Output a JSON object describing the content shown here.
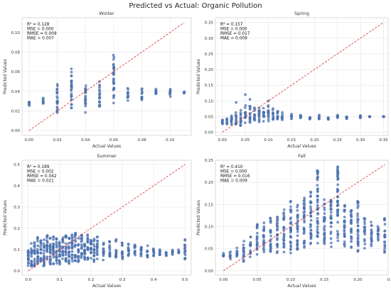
{
  "suptitle": "Predicted vs Actual: Organic Pollution",
  "colors": {
    "point": "#4c72b0",
    "diagonal": "#d62728",
    "grid": "#e6e6e6",
    "frame": "#cccccc",
    "text": "#333333"
  },
  "chart_data": [
    {
      "type": "scatter",
      "title": "Winter",
      "xlabel": "Actual Values",
      "ylabel": "Predicted Values",
      "xlim": [
        -0.005,
        0.115
      ],
      "ylim": [
        -0.005,
        0.115
      ],
      "xticks": [
        "0.00",
        "0.02",
        "0.04",
        "0.06",
        "0.08",
        "0.10"
      ],
      "xtick_values": [
        0,
        0.02,
        0.04,
        0.06,
        0.08,
        0.1
      ],
      "yticks": [
        "0.00",
        "0.02",
        "0.04",
        "0.06",
        "0.08",
        "0.10"
      ],
      "ytick_values": [
        0,
        0.02,
        0.04,
        0.06,
        0.08,
        0.1
      ],
      "grid": true,
      "diagonal": [
        0,
        0.11
      ],
      "metrics": [
        "R² = 0.128",
        "MSE = 0.000",
        "RMSE = 0.009",
        "MAE = 0.007"
      ],
      "columns": [
        {
          "x": 0.0,
          "y_min": 0.024,
          "y_max": 0.031
        },
        {
          "x": 0.01,
          "y_min": 0.026,
          "y_max": 0.034
        },
        {
          "x": 0.02,
          "y_min": 0.013,
          "y_max": 0.048
        },
        {
          "x": 0.03,
          "y_min": 0.022,
          "y_max": 0.063
        },
        {
          "x": 0.04,
          "y_min": 0.018,
          "y_max": 0.052
        },
        {
          "x": 0.05,
          "y_min": 0.021,
          "y_max": 0.052
        },
        {
          "x": 0.06,
          "y_min": 0.025,
          "y_max": 0.078
        },
        {
          "x": 0.07,
          "y_min": 0.03,
          "y_max": 0.046
        },
        {
          "x": 0.08,
          "y_min": 0.03,
          "y_max": 0.045
        },
        {
          "x": 0.09,
          "y_min": 0.034,
          "y_max": 0.044
        },
        {
          "x": 0.1,
          "y_min": 0.034,
          "y_max": 0.044
        },
        {
          "x": 0.11,
          "y_min": 0.038,
          "y_max": 0.04
        }
      ]
    },
    {
      "type": "scatter",
      "title": "Spring",
      "xlabel": "Actual Values",
      "ylabel": "Predicted Values",
      "xlim": [
        -0.015,
        0.36
      ],
      "ylim": [
        -0.01,
        0.365
      ],
      "xticks": [
        "0.00",
        "0.05",
        "0.10",
        "0.15",
        "0.20",
        "0.25",
        "0.30",
        "0.35"
      ],
      "xtick_values": [
        0,
        0.05,
        0.1,
        0.15,
        0.2,
        0.25,
        0.3,
        0.35
      ],
      "yticks": [
        "0.00",
        "0.05",
        "0.10",
        "0.15",
        "0.20",
        "0.25",
        "0.30",
        "0.35"
      ],
      "ytick_values": [
        0,
        0.05,
        0.1,
        0.15,
        0.2,
        0.25,
        0.3,
        0.35
      ],
      "grid": true,
      "diagonal": [
        0,
        0.35
      ],
      "metrics": [
        "R² = 0.157",
        "MSE = 0.000",
        "RMSE = 0.017",
        "MAE = 0.009"
      ],
      "columns": [
        {
          "x": 0.0,
          "y_min": 0.025,
          "y_max": 0.04
        },
        {
          "x": 0.01,
          "y_min": 0.025,
          "y_max": 0.045
        },
        {
          "x": 0.02,
          "y_min": 0.02,
          "y_max": 0.055
        },
        {
          "x": 0.03,
          "y_min": 0.02,
          "y_max": 0.07
        },
        {
          "x": 0.04,
          "y_min": 0.02,
          "y_max": 0.08
        },
        {
          "x": 0.05,
          "y_min": 0.025,
          "y_max": 0.09
        },
        {
          "x": 0.06,
          "y_min": 0.02,
          "y_max": 0.085
        },
        {
          "x": 0.07,
          "y_min": 0.03,
          "y_max": 0.08
        },
        {
          "x": 0.08,
          "y_min": 0.025,
          "y_max": 0.08
        },
        {
          "x": 0.09,
          "y_min": 0.03,
          "y_max": 0.085
        },
        {
          "x": 0.1,
          "y_min": 0.03,
          "y_max": 0.09
        },
        {
          "x": 0.11,
          "y_min": 0.035,
          "y_max": 0.08
        },
        {
          "x": 0.12,
          "y_min": 0.035,
          "y_max": 0.07
        },
        {
          "x": 0.13,
          "y_min": 0.035,
          "y_max": 0.065
        },
        {
          "x": 0.15,
          "y_min": 0.04,
          "y_max": 0.06
        },
        {
          "x": 0.17,
          "y_min": 0.04,
          "y_max": 0.055
        },
        {
          "x": 0.19,
          "y_min": 0.04,
          "y_max": 0.05
        },
        {
          "x": 0.21,
          "y_min": 0.04,
          "y_max": 0.055
        },
        {
          "x": 0.23,
          "y_min": 0.04,
          "y_max": 0.05
        },
        {
          "x": 0.25,
          "y_min": 0.045,
          "y_max": 0.055
        },
        {
          "x": 0.27,
          "y_min": 0.04,
          "y_max": 0.05
        },
        {
          "x": 0.3,
          "y_min": 0.045,
          "y_max": 0.055
        },
        {
          "x": 0.32,
          "y_min": 0.05,
          "y_max": 0.05
        },
        {
          "x": 0.35,
          "y_min": 0.05,
          "y_max": 0.05
        }
      ],
      "outliers": [
        [
          0.06,
          0.105
        ],
        [
          0.1,
          0.1
        ],
        [
          0.03,
          0.095
        ],
        [
          0.05,
          0.12
        ]
      ]
    },
    {
      "type": "scatter",
      "title": "Summer",
      "xlabel": "Actual Values",
      "ylabel": "Predicted Values",
      "xlim": [
        -0.02,
        0.52
      ],
      "ylim": [
        -0.02,
        0.52
      ],
      "xticks": [
        "0.0",
        "0.1",
        "0.2",
        "0.3",
        "0.4",
        "0.5"
      ],
      "xtick_values": [
        0,
        0.1,
        0.2,
        0.3,
        0.4,
        0.5
      ],
      "yticks": [
        "0.0",
        "0.1",
        "0.2",
        "0.3",
        "0.4",
        "0.5"
      ],
      "ytick_values": [
        0,
        0.1,
        0.2,
        0.3,
        0.4,
        0.5
      ],
      "grid": true,
      "diagonal": [
        0,
        0.5
      ],
      "metrics": [
        "R² = 0.189",
        "MSE = 0.002",
        "RMSE = 0.042",
        "MAE = 0.021"
      ],
      "columns": [
        {
          "x": 0.0,
          "y_min": 0.02,
          "y_max": 0.14
        },
        {
          "x": 0.01,
          "y_min": 0.02,
          "y_max": 0.14
        },
        {
          "x": 0.02,
          "y_min": 0.02,
          "y_max": 0.15
        },
        {
          "x": 0.03,
          "y_min": 0.02,
          "y_max": 0.16
        },
        {
          "x": 0.04,
          "y_min": 0.02,
          "y_max": 0.15
        },
        {
          "x": 0.05,
          "y_min": 0.02,
          "y_max": 0.16
        },
        {
          "x": 0.06,
          "y_min": 0.03,
          "y_max": 0.17
        },
        {
          "x": 0.07,
          "y_min": 0.02,
          "y_max": 0.16
        },
        {
          "x": 0.08,
          "y_min": 0.03,
          "y_max": 0.17
        },
        {
          "x": 0.09,
          "y_min": 0.03,
          "y_max": 0.16
        },
        {
          "x": 0.1,
          "y_min": 0.03,
          "y_max": 0.17
        },
        {
          "x": 0.11,
          "y_min": 0.03,
          "y_max": 0.16
        },
        {
          "x": 0.12,
          "y_min": 0.03,
          "y_max": 0.17
        },
        {
          "x": 0.13,
          "y_min": 0.03,
          "y_max": 0.16
        },
        {
          "x": 0.14,
          "y_min": 0.03,
          "y_max": 0.18
        },
        {
          "x": 0.15,
          "y_min": 0.04,
          "y_max": 0.19
        },
        {
          "x": 0.16,
          "y_min": 0.04,
          "y_max": 0.16
        },
        {
          "x": 0.17,
          "y_min": 0.04,
          "y_max": 0.17
        },
        {
          "x": 0.18,
          "y_min": 0.04,
          "y_max": 0.16
        },
        {
          "x": 0.19,
          "y_min": 0.04,
          "y_max": 0.17
        },
        {
          "x": 0.2,
          "y_min": 0.04,
          "y_max": 0.16
        },
        {
          "x": 0.21,
          "y_min": 0.04,
          "y_max": 0.15
        },
        {
          "x": 0.22,
          "y_min": 0.04,
          "y_max": 0.16
        },
        {
          "x": 0.24,
          "y_min": 0.05,
          "y_max": 0.15
        },
        {
          "x": 0.26,
          "y_min": 0.05,
          "y_max": 0.14
        },
        {
          "x": 0.28,
          "y_min": 0.05,
          "y_max": 0.15
        },
        {
          "x": 0.3,
          "y_min": 0.05,
          "y_max": 0.14
        },
        {
          "x": 0.32,
          "y_min": 0.06,
          "y_max": 0.13
        },
        {
          "x": 0.34,
          "y_min": 0.06,
          "y_max": 0.13
        },
        {
          "x": 0.36,
          "y_min": 0.06,
          "y_max": 0.12
        },
        {
          "x": 0.38,
          "y_min": 0.06,
          "y_max": 0.12
        },
        {
          "x": 0.4,
          "y_min": 0.06,
          "y_max": 0.11
        },
        {
          "x": 0.42,
          "y_min": 0.07,
          "y_max": 0.11
        },
        {
          "x": 0.44,
          "y_min": 0.07,
          "y_max": 0.1
        },
        {
          "x": 0.46,
          "y_min": 0.07,
          "y_max": 0.1
        },
        {
          "x": 0.48,
          "y_min": 0.08,
          "y_max": 0.1
        },
        {
          "x": 0.5,
          "y_min": 0.04,
          "y_max": 0.15
        }
      ]
    },
    {
      "type": "scatter",
      "title": "Fall",
      "xlabel": "Actual Values",
      "ylabel": "Predicted Values",
      "xlim": [
        -0.012,
        0.245
      ],
      "ylim": [
        -0.01,
        0.25
      ],
      "xticks": [
        "0.00",
        "0.05",
        "0.10",
        "0.15",
        "0.20",
        "0.25"
      ],
      "xtick_values": [
        0,
        0.05,
        0.1,
        0.15,
        0.2,
        0.25
      ],
      "yticks": [
        "0.00",
        "0.05",
        "0.10",
        "0.15",
        "0.20",
        "0.25"
      ],
      "ytick_values": [
        0,
        0.05,
        0.1,
        0.15,
        0.2,
        0.25
      ],
      "grid": true,
      "diagonal": [
        0,
        0.24
      ],
      "metrics": [
        "R² = 0.410",
        "MSE = 0.000",
        "RMSE = 0.016",
        "MAE = 0.009"
      ],
      "columns": [
        {
          "x": 0.0,
          "y_min": 0.03,
          "y_max": 0.04
        },
        {
          "x": 0.01,
          "y_min": 0.025,
          "y_max": 0.045
        },
        {
          "x": 0.02,
          "y_min": 0.03,
          "y_max": 0.055
        },
        {
          "x": 0.03,
          "y_min": 0.02,
          "y_max": 0.07
        },
        {
          "x": 0.04,
          "y_min": 0.03,
          "y_max": 0.08
        },
        {
          "x": 0.05,
          "y_min": 0.035,
          "y_max": 0.11
        },
        {
          "x": 0.06,
          "y_min": 0.04,
          "y_max": 0.11
        },
        {
          "x": 0.07,
          "y_min": 0.04,
          "y_max": 0.12
        },
        {
          "x": 0.08,
          "y_min": 0.04,
          "y_max": 0.13
        },
        {
          "x": 0.09,
          "y_min": 0.04,
          "y_max": 0.14
        },
        {
          "x": 0.1,
          "y_min": 0.04,
          "y_max": 0.16
        },
        {
          "x": 0.11,
          "y_min": 0.04,
          "y_max": 0.15
        },
        {
          "x": 0.12,
          "y_min": 0.05,
          "y_max": 0.17
        },
        {
          "x": 0.13,
          "y_min": 0.05,
          "y_max": 0.18
        },
        {
          "x": 0.14,
          "y_min": 0.06,
          "y_max": 0.23
        },
        {
          "x": 0.15,
          "y_min": 0.05,
          "y_max": 0.17
        },
        {
          "x": 0.16,
          "y_min": 0.05,
          "y_max": 0.16
        },
        {
          "x": 0.17,
          "y_min": 0.06,
          "y_max": 0.24
        },
        {
          "x": 0.18,
          "y_min": 0.05,
          "y_max": 0.15
        },
        {
          "x": 0.19,
          "y_min": 0.05,
          "y_max": 0.14
        },
        {
          "x": 0.2,
          "y_min": 0.04,
          "y_max": 0.16
        },
        {
          "x": 0.21,
          "y_min": 0.05,
          "y_max": 0.12
        },
        {
          "x": 0.22,
          "y_min": 0.05,
          "y_max": 0.11
        },
        {
          "x": 0.23,
          "y_min": 0.06,
          "y_max": 0.11
        },
        {
          "x": 0.24,
          "y_min": 0.04,
          "y_max": 0.12
        }
      ]
    }
  ]
}
